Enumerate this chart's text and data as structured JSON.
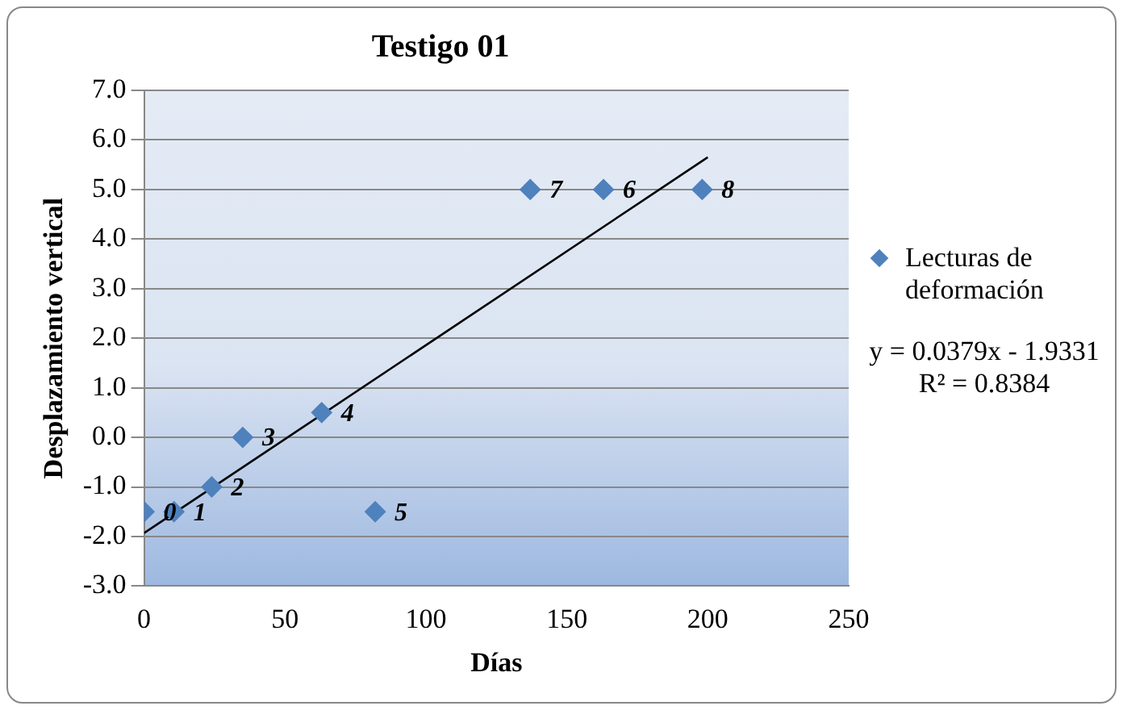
{
  "chart_data": {
    "type": "scatter",
    "title": "Testigo 01",
    "xlabel": "Días",
    "ylabel": "Desplazamiento vertical",
    "xlim": [
      0,
      250
    ],
    "xticks": [
      0,
      50,
      100,
      150,
      200,
      250
    ],
    "ylim": [
      -3,
      7
    ],
    "yticks": [
      {
        "value": -3,
        "label": "-3.0"
      },
      {
        "value": -2,
        "label": "-2.0"
      },
      {
        "value": -1,
        "label": "-1.0"
      },
      {
        "value": 0,
        "label": "0.0"
      },
      {
        "value": 1,
        "label": "1.0"
      },
      {
        "value": 2,
        "label": "2.0"
      },
      {
        "value": 3,
        "label": "3.0"
      },
      {
        "value": 4,
        "label": "4.0"
      },
      {
        "value": 5,
        "label": "5.0"
      },
      {
        "value": 6,
        "label": "6.0"
      },
      {
        "value": 7,
        "label": "7.0"
      }
    ],
    "grid": "y",
    "legend": "right",
    "marker": "diamond",
    "series": [
      {
        "name": "Lecturas de deformación",
        "color": "#4f81bd",
        "x": [
          0,
          10.6,
          24,
          35,
          63,
          82,
          137,
          163,
          198
        ],
        "values": [
          -1.5,
          -1.5,
          -1,
          0,
          0.5,
          -1.5,
          5,
          5,
          5
        ]
      },
      {
        "type": "line",
        "color": "#000000",
        "marker": "none",
        "x": [
          0,
          200
        ],
        "values": [
          -1.93,
          5.65
        ]
      }
    ],
    "annotations": [
      {
        "text": "0",
        "x": 0,
        "y": -1.5
      },
      {
        "text": "1",
        "x": 10.6,
        "y": -1.5
      },
      {
        "text": "2",
        "x": 24,
        "y": -1
      },
      {
        "text": "3",
        "x": 35,
        "y": 0
      },
      {
        "text": "4",
        "x": 63,
        "y": 0.5
      },
      {
        "text": "5",
        "x": 82,
        "y": -1.5
      },
      {
        "text": "7",
        "x": 137,
        "y": 5
      },
      {
        "text": "6",
        "x": 163,
        "y": 5
      },
      {
        "text": "8",
        "x": 198,
        "y": 5
      },
      "y = 0.0379x - 1.9331",
      "R² = 0.8384"
    ]
  }
}
